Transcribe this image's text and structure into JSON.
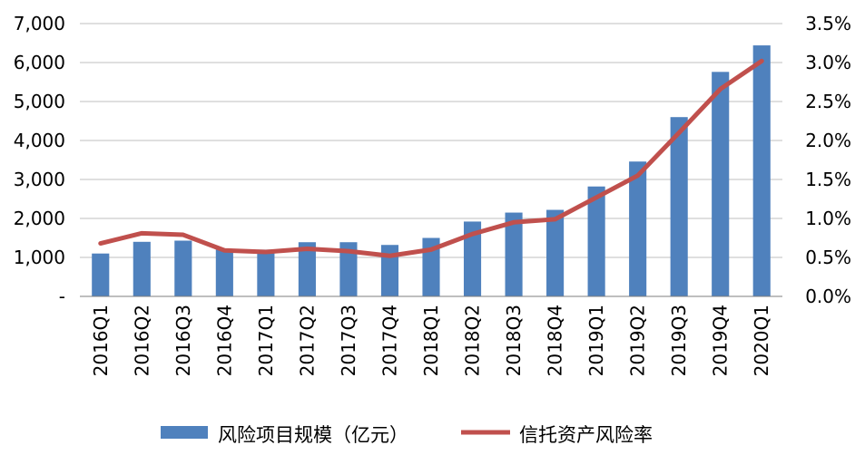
{
  "chart_data": {
    "type": "bar+line",
    "categories": [
      "2016Q1",
      "2016Q2",
      "2016Q3",
      "2016Q4",
      "2017Q1",
      "2017Q2",
      "2017Q3",
      "2017Q4",
      "2018Q1",
      "2018Q2",
      "2018Q3",
      "2018Q4",
      "2019Q1",
      "2019Q2",
      "2019Q3",
      "2019Q4",
      "2020Q1"
    ],
    "series": [
      {
        "name": "风险项目规模（亿元）",
        "type": "bar",
        "axis": "left",
        "color": "#4f81bd",
        "values": [
          1100,
          1400,
          1430,
          1200,
          1200,
          1390,
          1390,
          1320,
          1500,
          1920,
          2150,
          2220,
          2820,
          3460,
          4600,
          5760,
          6440
        ]
      },
      {
        "name": "信托资产风险率",
        "type": "line",
        "axis": "right",
        "color": "#c0504d",
        "values": [
          0.68,
          0.81,
          0.79,
          0.59,
          0.57,
          0.61,
          0.58,
          0.52,
          0.6,
          0.8,
          0.95,
          0.99,
          1.27,
          1.55,
          2.1,
          2.66,
          3.02
        ]
      }
    ],
    "y_left": {
      "ylim": [
        0,
        7000
      ],
      "ticks": [
        "-",
        "1,000",
        "2,000",
        "3,000",
        "4,000",
        "5,000",
        "6,000",
        "7,000"
      ]
    },
    "y_right": {
      "ylim": [
        0,
        3.5
      ],
      "ticks": [
        "0.0%",
        "0.5%",
        "1.0%",
        "1.5%",
        "2.0%",
        "2.5%",
        "3.0%",
        "3.5%"
      ]
    },
    "grid": true,
    "legend": "bottom"
  }
}
